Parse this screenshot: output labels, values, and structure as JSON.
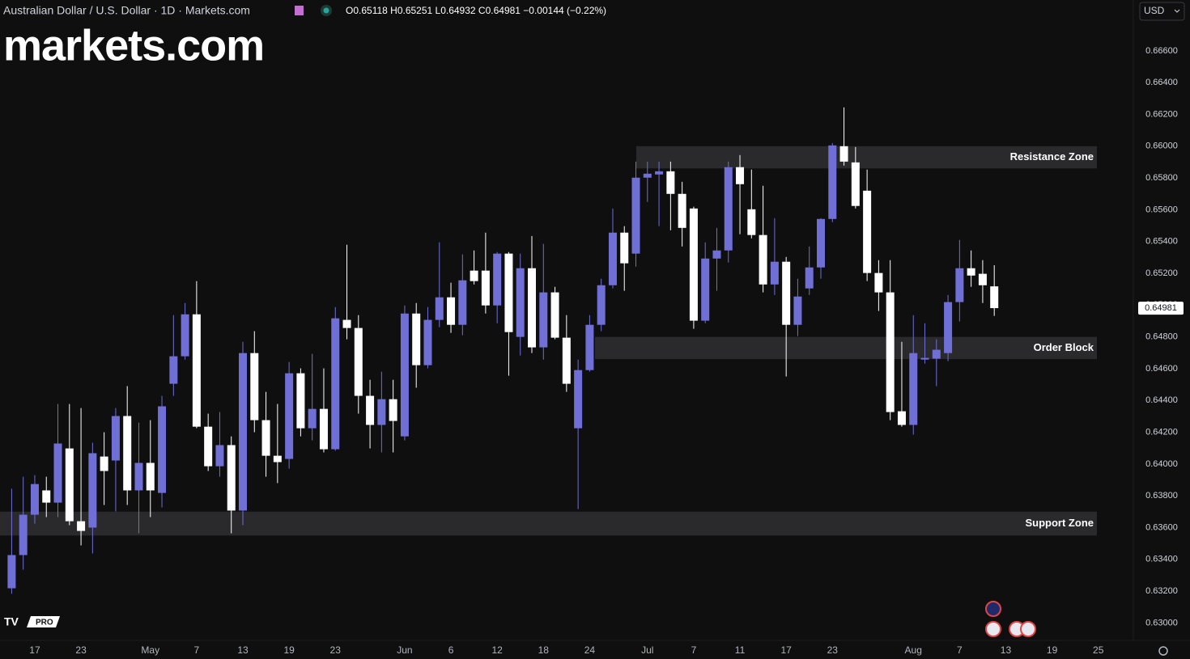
{
  "chart_data": {
    "type": "candlestick",
    "title": "Australian Dollar / U.S. Dollar · 1D · Markets.com",
    "legend_text": "O0.65118 H0.65251 L0.64932 C0.64981 −0.00144 (−0.22%)",
    "logo": "markets.com",
    "badge": "PRO",
    "currency": "USD",
    "up_color": "#6f6fd6",
    "down_color": "#ffffff",
    "zone_color": "#2a2a2d",
    "grid": false,
    "ylim": [
      0.6289,
      0.6692
    ],
    "yticks": [
      {
        "value": 0.666,
        "label": "0.66600"
      },
      {
        "value": 0.664,
        "label": "0.66400"
      },
      {
        "value": 0.662,
        "label": "0.66200"
      },
      {
        "value": 0.66,
        "label": "0.66000"
      },
      {
        "value": 0.658,
        "label": "0.65800"
      },
      {
        "value": 0.656,
        "label": "0.65600"
      },
      {
        "value": 0.654,
        "label": "0.65400"
      },
      {
        "value": 0.652,
        "label": "0.65200"
      },
      {
        "value": 0.65,
        "label": "0.65000"
      },
      {
        "value": 0.648,
        "label": "0.64800"
      },
      {
        "value": 0.646,
        "label": "0.64600"
      },
      {
        "value": 0.644,
        "label": "0.64400"
      },
      {
        "value": 0.642,
        "label": "0.64200"
      },
      {
        "value": 0.64,
        "label": "0.64000"
      },
      {
        "value": 0.638,
        "label": "0.63800"
      },
      {
        "value": 0.636,
        "label": "0.63600"
      },
      {
        "value": 0.634,
        "label": "0.63400"
      },
      {
        "value": 0.632,
        "label": "0.63200"
      },
      {
        "value": 0.63,
        "label": "0.63000"
      }
    ],
    "zones": [
      {
        "label": "Resistance Zone",
        "low": 0.6586,
        "high": 0.66
      },
      {
        "label": "Order Block",
        "low": 0.6466,
        "high": 0.648
      },
      {
        "label": "Support Zone",
        "low": 0.6355,
        "high": 0.637
      }
    ],
    "categories": [
      null,
      null,
      "17",
      null,
      null,
      null,
      "23",
      null,
      null,
      null,
      null,
      null,
      "May",
      null,
      null,
      null,
      "7",
      null,
      null,
      null,
      "13",
      null,
      null,
      null,
      "19",
      null,
      null,
      null,
      "23",
      null,
      null,
      null,
      null,
      null,
      "Jun",
      null,
      null,
      null,
      "6",
      null,
      null,
      null,
      "12",
      null,
      null,
      null,
      "18",
      null,
      null,
      null,
      "24",
      null,
      null,
      null,
      null,
      "Jul",
      null,
      null,
      null,
      "7",
      null,
      null,
      null,
      "11",
      null,
      null,
      null,
      "17",
      null,
      null,
      null,
      "23",
      null,
      null,
      null,
      null,
      null,
      null,
      "Aug",
      null,
      null,
      null,
      "7",
      null,
      null,
      null,
      "13",
      null,
      null,
      null,
      "19",
      null,
      null,
      null,
      "25"
    ],
    "open": [
      0.63218,
      0.63427,
      0.63681,
      0.63834,
      0.63757,
      0.64098,
      0.6364,
      0.636,
      0.64047,
      0.64022,
      0.64302,
      0.63834,
      0.64007,
      0.63818,
      0.64505,
      0.64678,
      0.64942,
      0.64235,
      0.63986,
      0.64119,
      0.63707,
      0.64698,
      0.64276,
      0.64052,
      0.64032,
      0.64571,
      0.64225,
      0.64347,
      0.64093,
      0.64907,
      0.64856,
      0.64429,
      0.64246,
      0.64408,
      0.64174,
      0.64947,
      0.64622,
      0.64907,
      0.65049,
      0.64876,
      0.65217,
      0.65217,
      0.64998,
      0.65324,
      0.648,
      0.65232,
      0.64734,
      0.6508,
      0.64795,
      0.64225,
      0.64591,
      0.64876,
      0.65125,
      0.65456,
      0.65324,
      0.65802,
      0.65822,
      0.65842,
      0.657,
      0.65608,
      0.64902,
      0.65293,
      0.65344,
      0.65868,
      0.65603,
      0.65441,
      0.6513,
      0.65273,
      0.64876,
      0.65105,
      0.65237,
      0.65542,
      0.66,
      0.65898,
      0.6572,
      0.65202,
      0.6508,
      0.64332,
      0.64246,
      0.64657,
      0.64663,
      0.64698,
      0.65019,
      0.65232,
      0.65197,
      0.65118,
      null,
      null,
      null,
      null,
      null,
      null,
      null,
      null,
      null
    ],
    "high": [
      0.63844,
      0.6392,
      0.6393,
      0.6392,
      0.64378,
      0.64378,
      0.64352,
      0.64134,
      0.642,
      0.64352,
      0.6449,
      0.64261,
      0.64276,
      0.64429,
      0.64937,
      0.65013,
      0.65151,
      0.64317,
      0.64327,
      0.64174,
      0.64769,
      0.64836,
      0.64454,
      0.64378,
      0.64642,
      0.64602,
      0.64693,
      0.64602,
      0.64988,
      0.6538,
      0.64937,
      0.6453,
      0.64581,
      0.6453,
      0.64998,
      0.65013,
      0.64988,
      0.65395,
      0.65141,
      0.65319,
      0.65344,
      0.65456,
      0.65334,
      0.65334,
      0.65324,
      0.65435,
      0.65385,
      0.65115,
      0.64937,
      0.64657,
      0.64937,
      0.65166,
      0.65608,
      0.65497,
      0.65903,
      0.65903,
      0.65903,
      0.65903,
      0.65776,
      0.65619,
      0.65395,
      0.65486,
      0.65903,
      0.65944,
      0.65853,
      0.65751,
      0.65547,
      0.65303,
      0.65166,
      0.65369,
      0.65547,
      0.6602,
      0.66244,
      0.65995,
      0.65853,
      0.65283,
      0.65283,
      0.64769,
      0.64937,
      0.64886,
      0.64785,
      0.65064,
      0.6541,
      0.65344,
      0.65283,
      0.65251,
      null,
      null,
      null,
      null,
      null,
      null,
      null,
      null,
      null
    ],
    "low": [
      0.63183,
      0.63335,
      0.63625,
      0.63666,
      0.63666,
      0.63615,
      0.63488,
      0.63437,
      0.63742,
      0.63701,
      0.63742,
      0.63564,
      0.63666,
      0.63727,
      0.64429,
      0.64657,
      0.64225,
      0.63956,
      0.6392,
      0.63564,
      0.63615,
      0.642,
      0.6392,
      0.6388,
      0.63971,
      0.64174,
      0.64149,
      0.64073,
      0.64083,
      0.64785,
      0.64317,
      0.64098,
      0.64073,
      0.64073,
      0.64149,
      0.6448,
      0.64602,
      0.64861,
      0.64825,
      0.6481,
      0.6513,
      0.64947,
      0.64886,
      0.64556,
      0.64683,
      0.64698,
      0.64657,
      0.64785,
      0.64454,
      0.63717,
      0.64581,
      0.64836,
      0.65105,
      0.6509,
      0.65242,
      0.65649,
      0.65497,
      0.65471,
      0.65369,
      0.64851,
      0.64886,
      0.6509,
      0.65268,
      0.65446,
      0.6542,
      0.6508,
      0.65064,
      0.64551,
      0.64805,
      0.65064,
      0.65166,
      0.65522,
      0.65878,
      0.65608,
      0.65151,
      0.64963,
      0.64276,
      0.64235,
      0.64185,
      0.64632,
      0.6449,
      0.64647,
      0.64897,
      0.65115,
      0.65013,
      0.64932,
      null,
      null,
      null,
      null,
      null,
      null,
      null,
      null,
      null
    ],
    "close": [
      0.63427,
      0.63681,
      0.63874,
      0.63757,
      0.64129,
      0.6364,
      0.63579,
      0.64068,
      0.63956,
      0.64302,
      0.63834,
      0.64007,
      0.63834,
      0.64363,
      0.64678,
      0.64942,
      0.64235,
      0.63986,
      0.64119,
      0.63707,
      0.64698,
      0.64276,
      0.64052,
      0.64012,
      0.64571,
      0.64225,
      0.64347,
      0.64093,
      0.64917,
      0.64856,
      0.64429,
      0.64246,
      0.64408,
      0.64271,
      0.64947,
      0.64622,
      0.64907,
      0.65049,
      0.64876,
      0.65156,
      0.65151,
      0.64998,
      0.65324,
      0.6483,
      0.65232,
      0.64734,
      0.6508,
      0.64795,
      0.64505,
      0.64591,
      0.64876,
      0.65125,
      0.65456,
      0.65263,
      0.65802,
      0.65827,
      0.65842,
      0.657,
      0.65486,
      0.64902,
      0.65293,
      0.65344,
      0.65868,
      0.65761,
      0.65441,
      0.6513,
      0.65273,
      0.64876,
      0.65054,
      0.65237,
      0.65542,
      0.66005,
      0.65903,
      0.65624,
      0.65202,
      0.6508,
      0.64327,
      0.64246,
      0.64698,
      0.64668,
      0.64719,
      0.65019,
      0.65232,
      0.65186,
      0.65125,
      0.64981,
      null,
      null,
      null,
      null,
      null,
      null,
      null,
      null,
      null
    ]
  }
}
